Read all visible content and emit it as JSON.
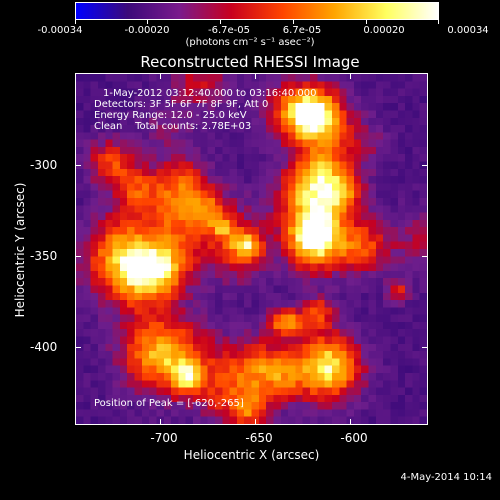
{
  "colorbar": {
    "ticks": [
      "-0.00034",
      "-0.00020",
      "-6.7e-05",
      "6.7e-05",
      "0.00020",
      "0.00034"
    ],
    "units": "(photons cm⁻² s⁻¹ asec⁻²)",
    "gradient_colors": [
      "#0000ff",
      "#3c0a7a",
      "#7a1a8c",
      "#c8001e",
      "#ff4500",
      "#ffa500",
      "#ffff60",
      "#ffffff"
    ]
  },
  "title": "Reconstructed RHESSI Image",
  "annotations": {
    "time_range": "1-May-2012 03:12:40.000 to 03:16:40.000",
    "detectors": "Detectors: 3F 5F 6F 7F 8F 9F, Att 0",
    "energy_range": "Energy Range: 12.0 - 25.0 keV",
    "clean": "Clean    Total counts: 2.78E+03",
    "peak": "Position of Peak = [-620,-265]"
  },
  "x_axis": {
    "label": "Heliocentric X (arcsec)",
    "ticks": [
      "-700",
      "-650",
      "-600"
    ]
  },
  "y_axis": {
    "label": "Heliocentric Y (arcsec)",
    "ticks": [
      "-300",
      "-350",
      "-400"
    ]
  },
  "footer": "4-May-2014 10:14"
}
